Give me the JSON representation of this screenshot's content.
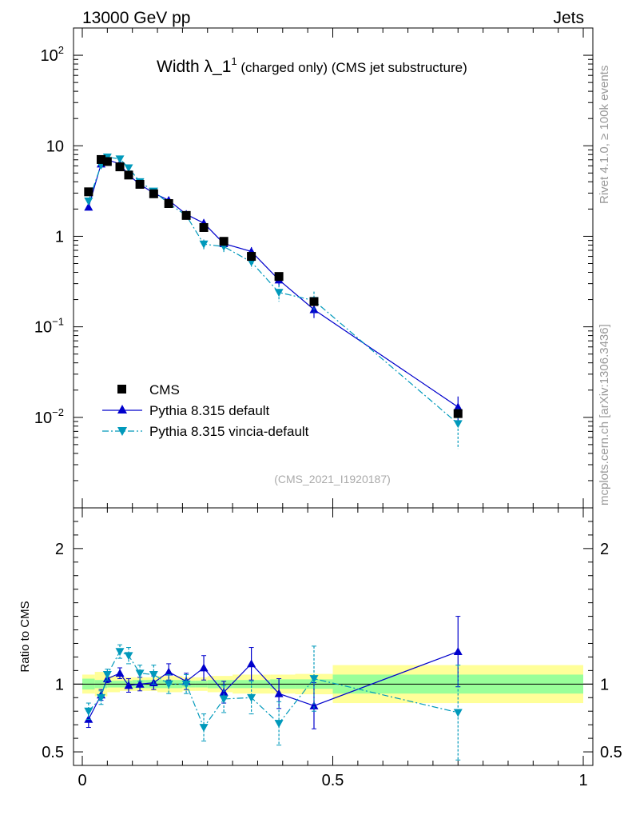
{
  "header": {
    "left": "13000 GeV pp",
    "right": "Jets"
  },
  "side": {
    "rivet": "Rivet 4.1.0, ≥ 100k events",
    "mcplots": "mcplots.cern.ch [arXiv:1306.3436]"
  },
  "chart_data": {
    "type": "line",
    "title_main": "Width λ_1",
    "title_sup": "1",
    "title_sub": " (charged only) (CMS jet substructure)",
    "analysis_id": "(CMS_2021_I1920187)",
    "xlabel": "",
    "ylabel_main": "",
    "ylabel_ratio": "Ratio to CMS",
    "xlim": [
      0,
      1
    ],
    "ylim_main": [
      0.001,
      200
    ],
    "ylim_ratio": [
      0.4,
      2.3
    ],
    "yscale_main": "log",
    "xticks": [
      {
        "v": 0,
        "label": "0"
      },
      {
        "v": 0.5,
        "label": "0.5"
      },
      {
        "v": 1,
        "label": "1"
      }
    ],
    "yticks_main": [
      {
        "v": 0.01,
        "base": "10",
        "sup": "−2"
      },
      {
        "v": 0.1,
        "base": "10",
        "sup": "−1"
      },
      {
        "v": 1,
        "base": "1",
        "sup": ""
      },
      {
        "v": 10,
        "base": "10",
        "sup": ""
      },
      {
        "v": 100,
        "base": "10",
        "sup": "2"
      }
    ],
    "yticks_ratio": [
      {
        "v": 0.5,
        "label": "0.5"
      },
      {
        "v": 1,
        "label": "1"
      },
      {
        "v": 2,
        "label": "2"
      }
    ],
    "legend_position": "bottom-left",
    "series": [
      {
        "name": "CMS",
        "color": "#000000",
        "marker": "square",
        "x": [
          0.0125,
          0.0375,
          0.05,
          0.075,
          0.0925,
          0.115,
          0.1425,
          0.1725,
          0.2075,
          0.2425,
          0.2825,
          0.3375,
          0.3925,
          0.4625,
          0.75
        ],
        "y": [
          3.1,
          7.05,
          6.7,
          5.85,
          4.75,
          3.75,
          2.95,
          2.3,
          1.7,
          1.25,
          0.88,
          0.6,
          0.36,
          0.19,
          0.011
        ],
        "band_edges": [
          0,
          0.025,
          0.05,
          0.075,
          0.1,
          0.125,
          0.15,
          0.2,
          0.225,
          0.25,
          0.3,
          0.375,
          0.425,
          0.5,
          1.0
        ],
        "band_inner": [
          0.04,
          0.03,
          0.025,
          0.025,
          0.03,
          0.03,
          0.03,
          0.025,
          0.025,
          0.03,
          0.03,
          0.035,
          0.035,
          0.07,
          0.07
        ],
        "band_outer": [
          0.07,
          0.09,
          0.06,
          0.05,
          0.05,
          0.05,
          0.06,
          0.05,
          0.05,
          0.06,
          0.07,
          0.07,
          0.075,
          0.14,
          0.14
        ]
      },
      {
        "name": "Pythia 8.315 default",
        "color": "#0000cc",
        "marker": "triangle-up",
        "line": "solid",
        "x": [
          0.0125,
          0.0375,
          0.05,
          0.075,
          0.0925,
          0.115,
          0.1425,
          0.1725,
          0.2075,
          0.2425,
          0.2825,
          0.3375,
          0.3925,
          0.4625,
          0.75
        ],
        "y": [
          2.1,
          6.3,
          7.0,
          6.3,
          4.75,
          3.75,
          3.0,
          2.5,
          1.75,
          1.4,
          0.83,
          0.68,
          0.33,
          0.155,
          0.013
        ],
        "yerr": [
          0.1,
          0.3,
          0.3,
          0.3,
          0.25,
          0.2,
          0.15,
          0.15,
          0.12,
          0.15,
          0.09,
          0.08,
          0.05,
          0.03,
          0.004
        ],
        "ratio": [
          0.74,
          0.92,
          1.04,
          1.08,
          0.99,
          1.0,
          1.01,
          1.09,
          1.02,
          1.12,
          0.94,
          1.15,
          0.93,
          0.84,
          1.24
        ],
        "ratio_err": [
          0.06,
          0.04,
          0.03,
          0.04,
          0.05,
          0.05,
          0.05,
          0.06,
          0.06,
          0.09,
          0.08,
          0.12,
          0.11,
          0.17,
          0.26
        ]
      },
      {
        "name": "Pythia 8.315 vincia-default",
        "color": "#0099bb",
        "marker": "triangle-down",
        "line": "dashdot",
        "x": [
          0.0125,
          0.0375,
          0.05,
          0.075,
          0.0925,
          0.115,
          0.1425,
          0.1725,
          0.2075,
          0.2425,
          0.2825,
          0.3375,
          0.3925,
          0.4625,
          0.75
        ],
        "y": [
          2.45,
          6.1,
          7.5,
          7.15,
          5.7,
          4.0,
          3.15,
          2.3,
          1.7,
          0.82,
          0.77,
          0.52,
          0.24,
          0.195,
          0.0085
        ],
        "yerr": [
          0.15,
          0.3,
          0.35,
          0.35,
          0.3,
          0.25,
          0.2,
          0.15,
          0.12,
          0.1,
          0.1,
          0.08,
          0.05,
          0.05,
          0.004
        ],
        "ratio": [
          0.8,
          0.9,
          1.07,
          1.24,
          1.21,
          1.08,
          1.07,
          1.0,
          1.0,
          0.68,
          0.89,
          0.9,
          0.71,
          1.04,
          0.79
        ],
        "ratio_err": [
          0.06,
          0.05,
          0.04,
          0.05,
          0.06,
          0.06,
          0.07,
          0.07,
          0.07,
          0.1,
          0.1,
          0.12,
          0.16,
          0.24,
          0.35
        ]
      }
    ]
  }
}
